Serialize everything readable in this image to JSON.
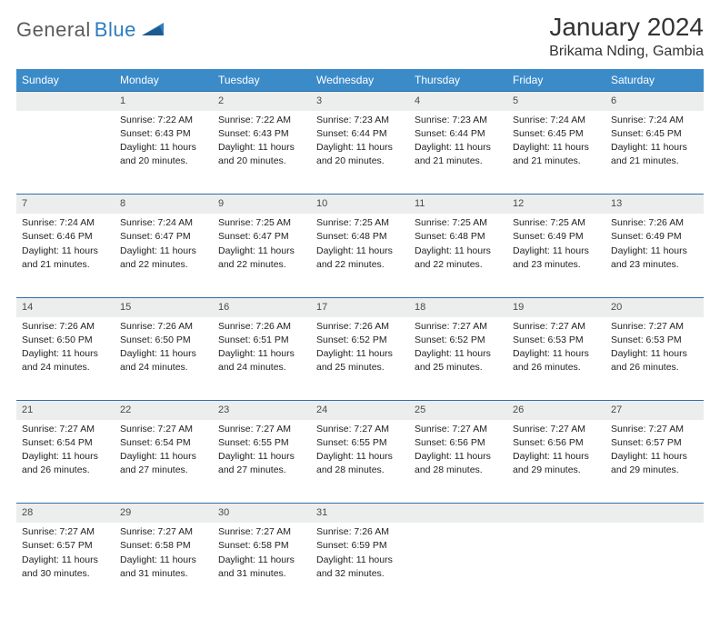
{
  "logo": {
    "text1": "General",
    "text2": "Blue"
  },
  "title": "January 2024",
  "location": "Brikama Nding, Gambia",
  "colors": {
    "header_bg": "#3b8bc9",
    "header_text": "#ffffff",
    "daynum_bg": "#eceded",
    "daynum_border": "#2f6fa8",
    "logo_gray": "#5b5b5b",
    "logo_blue": "#2e7cc1"
  },
  "weekdays": [
    "Sunday",
    "Monday",
    "Tuesday",
    "Wednesday",
    "Thursday",
    "Friday",
    "Saturday"
  ],
  "weeks": [
    {
      "nums": [
        "",
        "1",
        "2",
        "3",
        "4",
        "5",
        "6"
      ],
      "cells": [
        null,
        {
          "sunrise": "Sunrise: 7:22 AM",
          "sunset": "Sunset: 6:43 PM",
          "day1": "Daylight: 11 hours",
          "day2": "and 20 minutes."
        },
        {
          "sunrise": "Sunrise: 7:22 AM",
          "sunset": "Sunset: 6:43 PM",
          "day1": "Daylight: 11 hours",
          "day2": "and 20 minutes."
        },
        {
          "sunrise": "Sunrise: 7:23 AM",
          "sunset": "Sunset: 6:44 PM",
          "day1": "Daylight: 11 hours",
          "day2": "and 20 minutes."
        },
        {
          "sunrise": "Sunrise: 7:23 AM",
          "sunset": "Sunset: 6:44 PM",
          "day1": "Daylight: 11 hours",
          "day2": "and 21 minutes."
        },
        {
          "sunrise": "Sunrise: 7:24 AM",
          "sunset": "Sunset: 6:45 PM",
          "day1": "Daylight: 11 hours",
          "day2": "and 21 minutes."
        },
        {
          "sunrise": "Sunrise: 7:24 AM",
          "sunset": "Sunset: 6:45 PM",
          "day1": "Daylight: 11 hours",
          "day2": "and 21 minutes."
        }
      ]
    },
    {
      "nums": [
        "7",
        "8",
        "9",
        "10",
        "11",
        "12",
        "13"
      ],
      "cells": [
        {
          "sunrise": "Sunrise: 7:24 AM",
          "sunset": "Sunset: 6:46 PM",
          "day1": "Daylight: 11 hours",
          "day2": "and 21 minutes."
        },
        {
          "sunrise": "Sunrise: 7:24 AM",
          "sunset": "Sunset: 6:47 PM",
          "day1": "Daylight: 11 hours",
          "day2": "and 22 minutes."
        },
        {
          "sunrise": "Sunrise: 7:25 AM",
          "sunset": "Sunset: 6:47 PM",
          "day1": "Daylight: 11 hours",
          "day2": "and 22 minutes."
        },
        {
          "sunrise": "Sunrise: 7:25 AM",
          "sunset": "Sunset: 6:48 PM",
          "day1": "Daylight: 11 hours",
          "day2": "and 22 minutes."
        },
        {
          "sunrise": "Sunrise: 7:25 AM",
          "sunset": "Sunset: 6:48 PM",
          "day1": "Daylight: 11 hours",
          "day2": "and 22 minutes."
        },
        {
          "sunrise": "Sunrise: 7:25 AM",
          "sunset": "Sunset: 6:49 PM",
          "day1": "Daylight: 11 hours",
          "day2": "and 23 minutes."
        },
        {
          "sunrise": "Sunrise: 7:26 AM",
          "sunset": "Sunset: 6:49 PM",
          "day1": "Daylight: 11 hours",
          "day2": "and 23 minutes."
        }
      ]
    },
    {
      "nums": [
        "14",
        "15",
        "16",
        "17",
        "18",
        "19",
        "20"
      ],
      "cells": [
        {
          "sunrise": "Sunrise: 7:26 AM",
          "sunset": "Sunset: 6:50 PM",
          "day1": "Daylight: 11 hours",
          "day2": "and 24 minutes."
        },
        {
          "sunrise": "Sunrise: 7:26 AM",
          "sunset": "Sunset: 6:50 PM",
          "day1": "Daylight: 11 hours",
          "day2": "and 24 minutes."
        },
        {
          "sunrise": "Sunrise: 7:26 AM",
          "sunset": "Sunset: 6:51 PM",
          "day1": "Daylight: 11 hours",
          "day2": "and 24 minutes."
        },
        {
          "sunrise": "Sunrise: 7:26 AM",
          "sunset": "Sunset: 6:52 PM",
          "day1": "Daylight: 11 hours",
          "day2": "and 25 minutes."
        },
        {
          "sunrise": "Sunrise: 7:27 AM",
          "sunset": "Sunset: 6:52 PM",
          "day1": "Daylight: 11 hours",
          "day2": "and 25 minutes."
        },
        {
          "sunrise": "Sunrise: 7:27 AM",
          "sunset": "Sunset: 6:53 PM",
          "day1": "Daylight: 11 hours",
          "day2": "and 26 minutes."
        },
        {
          "sunrise": "Sunrise: 7:27 AM",
          "sunset": "Sunset: 6:53 PM",
          "day1": "Daylight: 11 hours",
          "day2": "and 26 minutes."
        }
      ]
    },
    {
      "nums": [
        "21",
        "22",
        "23",
        "24",
        "25",
        "26",
        "27"
      ],
      "cells": [
        {
          "sunrise": "Sunrise: 7:27 AM",
          "sunset": "Sunset: 6:54 PM",
          "day1": "Daylight: 11 hours",
          "day2": "and 26 minutes."
        },
        {
          "sunrise": "Sunrise: 7:27 AM",
          "sunset": "Sunset: 6:54 PM",
          "day1": "Daylight: 11 hours",
          "day2": "and 27 minutes."
        },
        {
          "sunrise": "Sunrise: 7:27 AM",
          "sunset": "Sunset: 6:55 PM",
          "day1": "Daylight: 11 hours",
          "day2": "and 27 minutes."
        },
        {
          "sunrise": "Sunrise: 7:27 AM",
          "sunset": "Sunset: 6:55 PM",
          "day1": "Daylight: 11 hours",
          "day2": "and 28 minutes."
        },
        {
          "sunrise": "Sunrise: 7:27 AM",
          "sunset": "Sunset: 6:56 PM",
          "day1": "Daylight: 11 hours",
          "day2": "and 28 minutes."
        },
        {
          "sunrise": "Sunrise: 7:27 AM",
          "sunset": "Sunset: 6:56 PM",
          "day1": "Daylight: 11 hours",
          "day2": "and 29 minutes."
        },
        {
          "sunrise": "Sunrise: 7:27 AM",
          "sunset": "Sunset: 6:57 PM",
          "day1": "Daylight: 11 hours",
          "day2": "and 29 minutes."
        }
      ]
    },
    {
      "nums": [
        "28",
        "29",
        "30",
        "31",
        "",
        "",
        ""
      ],
      "cells": [
        {
          "sunrise": "Sunrise: 7:27 AM",
          "sunset": "Sunset: 6:57 PM",
          "day1": "Daylight: 11 hours",
          "day2": "and 30 minutes."
        },
        {
          "sunrise": "Sunrise: 7:27 AM",
          "sunset": "Sunset: 6:58 PM",
          "day1": "Daylight: 11 hours",
          "day2": "and 31 minutes."
        },
        {
          "sunrise": "Sunrise: 7:27 AM",
          "sunset": "Sunset: 6:58 PM",
          "day1": "Daylight: 11 hours",
          "day2": "and 31 minutes."
        },
        {
          "sunrise": "Sunrise: 7:26 AM",
          "sunset": "Sunset: 6:59 PM",
          "day1": "Daylight: 11 hours",
          "day2": "and 32 minutes."
        },
        null,
        null,
        null
      ]
    }
  ]
}
